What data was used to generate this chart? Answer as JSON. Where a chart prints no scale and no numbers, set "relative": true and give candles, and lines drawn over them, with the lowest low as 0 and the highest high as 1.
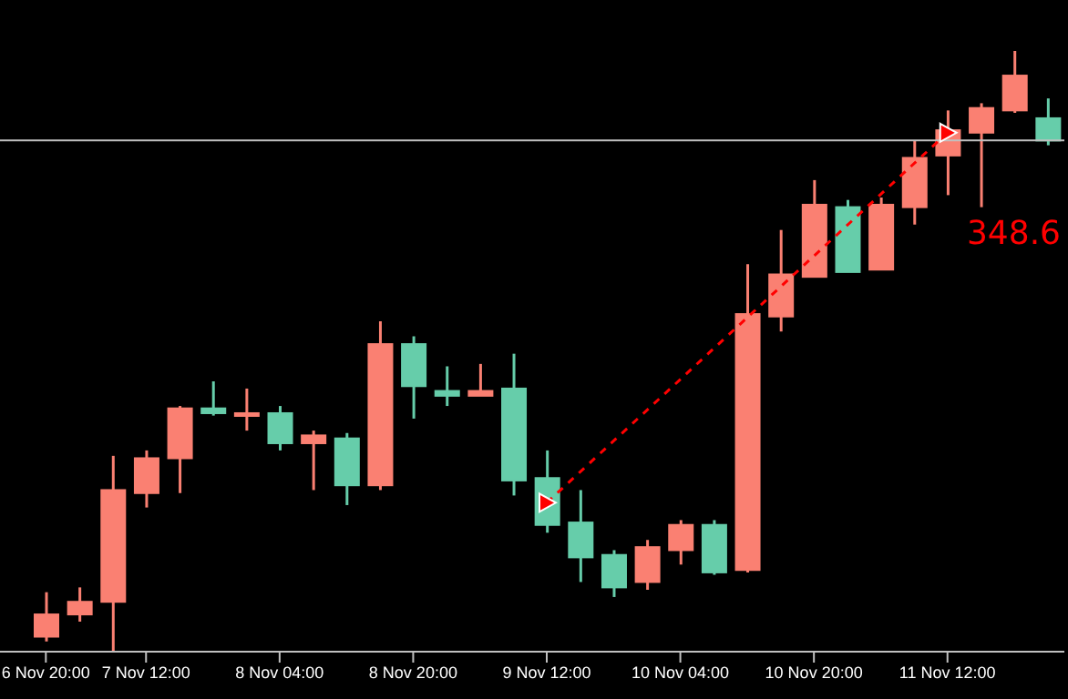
{
  "chart_data": {
    "type": "candlestick",
    "relative": true,
    "categories": [
      "6 Nov 20:00",
      null,
      null,
      "7 Nov 12:00",
      null,
      null,
      null,
      "8 Nov 04:00",
      null,
      null,
      null,
      "8 Nov 20:00",
      null,
      null,
      null,
      "9 Nov 12:00",
      null,
      null,
      null,
      "10 Nov 04:00",
      null,
      null,
      null,
      "10 Nov 20:00",
      null,
      null,
      null,
      "11 Nov 12:00",
      null,
      null,
      null
    ],
    "ohlc": [
      [
        0.025,
        0.099,
        0.017,
        0.062
      ],
      [
        0.062,
        0.107,
        0.05,
        0.083
      ],
      [
        0.083,
        0.326,
        0,
        0.269
      ],
      [
        0.264,
        0.335,
        0.24,
        0.322
      ],
      [
        0.322,
        0.409,
        0.264,
        0.405
      ],
      [
        0.405,
        0.45,
        0.393,
        0.397
      ],
      [
        0.393,
        0.438,
        0.368,
        0.397
      ],
      [
        0.397,
        0.409,
        0.335,
        0.347
      ],
      [
        0.347,
        0.368,
        0.269,
        0.36
      ],
      [
        0.355,
        0.364,
        0.244,
        0.277
      ],
      [
        0.277,
        0.55,
        0.269,
        0.512
      ],
      [
        0.512,
        0.525,
        0.388,
        0.442
      ],
      [
        0.434,
        0.475,
        0.409,
        0.426
      ],
      [
        0.426,
        0.479,
        0.426,
        0.434
      ],
      [
        0.438,
        0.496,
        0.26,
        0.285
      ],
      [
        0.289,
        0.335,
        0.198,
        0.211
      ],
      [
        0.215,
        0.269,
        0.116,
        0.157
      ],
      [
        0.161,
        0.169,
        0.091,
        0.107
      ],
      [
        0.116,
        0.186,
        0.103,
        0.174
      ],
      [
        0.169,
        0.219,
        0.145,
        0.211
      ],
      [
        0.211,
        0.219,
        0.128,
        0.132
      ],
      [
        0.136,
        0.645,
        0.132,
        0.562
      ],
      [
        0.558,
        0.702,
        0.533,
        0.628
      ],
      [
        0.624,
        0.785,
        0.624,
        0.744
      ],
      [
        0.74,
        0.752,
        0.632,
        0.632
      ],
      [
        0.636,
        0.756,
        0.636,
        0.744
      ],
      [
        0.74,
        0.851,
        0.711,
        0.822
      ],
      [
        0.826,
        0.901,
        0.76,
        0.868
      ],
      [
        0.864,
        0.913,
        0.74,
        0.905
      ],
      [
        0.901,
        1,
        0.897,
        0.959
      ],
      [
        0.888,
        0.921,
        0.843,
        0.851
      ]
    ],
    "colors": [
      "#fa8072",
      "#fa8072",
      "#fa8072",
      "#fa8072",
      "#fa8072",
      "#66cdaa",
      "#fa8072",
      "#66cdaa",
      "#fa8072",
      "#66cdaa",
      "#fa8072",
      "#66cdaa",
      "#66cdaa",
      "#fa8072",
      "#66cdaa",
      "#66cdaa",
      "#66cdaa",
      "#66cdaa",
      "#fa8072",
      "#fa8072",
      "#66cdaa",
      "#fa8072",
      "#fa8072",
      "#fa8072",
      "#66cdaa",
      "#fa8072",
      "#fa8072",
      "#fa8072",
      "#fa8072",
      "#fa8072",
      "#66cdaa"
    ],
    "series": [
      {
        "type": "line",
        "color": "#ff0000",
        "line_style": "dashed",
        "marker": "triangle",
        "values": [
          null,
          null,
          null,
          null,
          null,
          null,
          null,
          null,
          null,
          null,
          null,
          null,
          null,
          null,
          null,
          0.248,
          null,
          null,
          null,
          null,
          null,
          null,
          null,
          null,
          null,
          null,
          null,
          0.864,
          null,
          null,
          null
        ]
      }
    ],
    "ref_lines": [
      {
        "axis": "y",
        "value": 0.851,
        "color": "#c0c0c0"
      }
    ],
    "annotations": [
      "348.6"
    ],
    "grid": false,
    "legend": false
  }
}
